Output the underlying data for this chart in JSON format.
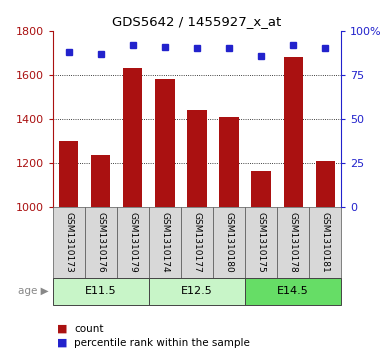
{
  "title": "GDS5642 / 1455927_x_at",
  "samples": [
    "GSM1310173",
    "GSM1310176",
    "GSM1310179",
    "GSM1310174",
    "GSM1310177",
    "GSM1310180",
    "GSM1310175",
    "GSM1310178",
    "GSM1310181"
  ],
  "counts": [
    1300,
    1235,
    1630,
    1580,
    1440,
    1410,
    1165,
    1680,
    1210
  ],
  "percentile_ranks": [
    88,
    87,
    92,
    91,
    90,
    90,
    86,
    92,
    90
  ],
  "age_groups": [
    {
      "label": "E11.5",
      "start": 0,
      "end": 3,
      "color": "#c8f5c8"
    },
    {
      "label": "E12.5",
      "start": 3,
      "end": 6,
      "color": "#c8f5c8"
    },
    {
      "label": "E14.5",
      "start": 6,
      "end": 9,
      "color": "#66dd66"
    }
  ],
  "ylim_left": [
    1000,
    1800
  ],
  "ylim_right": [
    0,
    100
  ],
  "yticks_left": [
    1000,
    1200,
    1400,
    1600,
    1800
  ],
  "yticks_right": [
    0,
    25,
    50,
    75,
    100
  ],
  "bar_color": "#AA1111",
  "dot_color": "#2222CC",
  "background_color": "#ffffff",
  "cell_bg": "#d8d8d8",
  "legend_count": "count",
  "legend_pct": "percentile rank within the sample",
  "age_label": "age"
}
